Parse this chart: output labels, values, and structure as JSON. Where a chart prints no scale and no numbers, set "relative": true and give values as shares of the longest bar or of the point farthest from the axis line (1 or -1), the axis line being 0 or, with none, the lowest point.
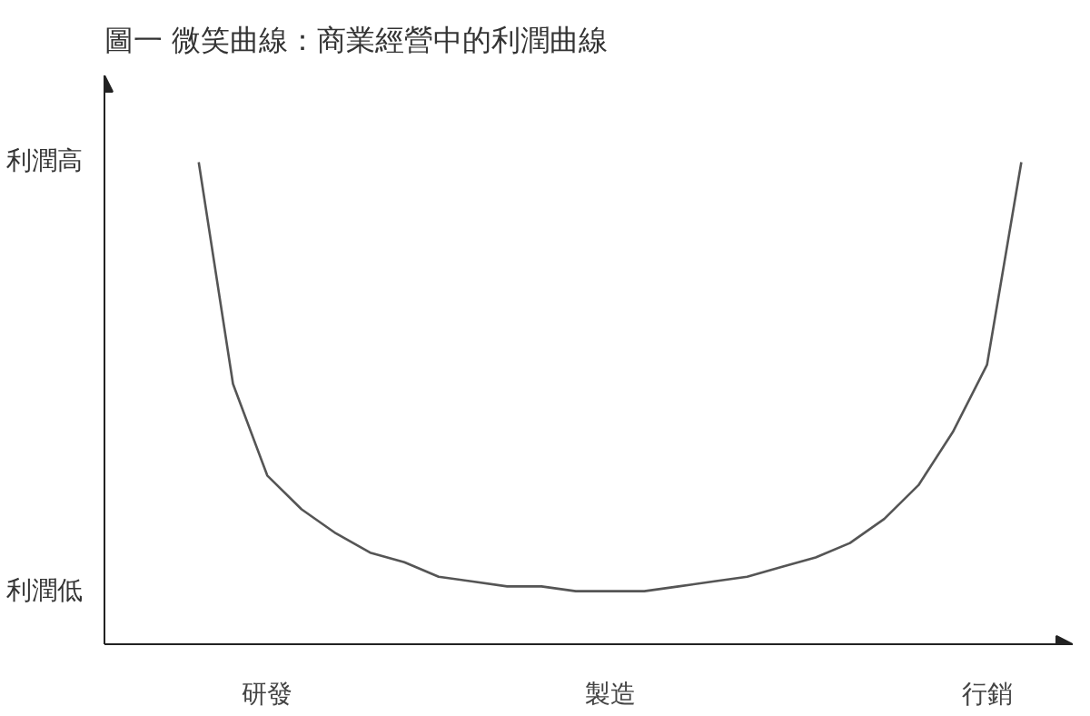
{
  "chart_data": {
    "type": "line",
    "title": "圖一  微笑曲線：商業經營中的利潤曲線",
    "relative": true,
    "categories": [
      null,
      null,
      "研發",
      null,
      null,
      null,
      null,
      null,
      null,
      null,
      null,
      null,
      "製造",
      null,
      null,
      null,
      null,
      null,
      null,
      null,
      null,
      null,
      null,
      "行銷",
      null
    ],
    "series": [
      {
        "color": "#555555",
        "values": [
          1.0,
          0.54,
          0.35,
          0.28,
          0.23,
          0.19,
          0.17,
          0.14,
          0.13,
          0.12,
          0.12,
          0.11,
          0.11,
          0.11,
          0.12,
          0.13,
          0.14,
          0.16,
          0.18,
          0.21,
          0.26,
          0.33,
          0.44,
          0.58,
          1.0
        ]
      }
    ],
    "annotations": [
      "利潤高",
      "利潤低"
    ],
    "grid": false,
    "marker": "none",
    "line_style": "solid"
  }
}
